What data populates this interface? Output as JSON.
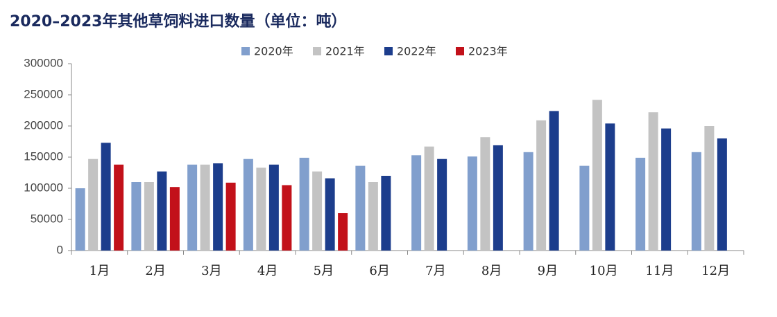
{
  "chart_data": {
    "type": "bar",
    "title": "2020–2023年其他草饲料进口数量（单位：吨）",
    "categories": [
      "1月",
      "2月",
      "3月",
      "4月",
      "5月",
      "6月",
      "7月",
      "8月",
      "9月",
      "10月",
      "11月",
      "12月"
    ],
    "series": [
      {
        "name": "2020年",
        "color": "#819fcd",
        "values": [
          100000,
          110000,
          138000,
          147000,
          149000,
          136000,
          153000,
          151000,
          158000,
          136000,
          149000,
          158000
        ]
      },
      {
        "name": "2021年",
        "color": "#c3c3c3",
        "values": [
          147000,
          110000,
          138000,
          133000,
          127000,
          110000,
          167000,
          182000,
          209000,
          242000,
          222000,
          200000
        ]
      },
      {
        "name": "2022年",
        "color": "#1c3d8c",
        "values": [
          173000,
          127000,
          140000,
          138000,
          116000,
          120000,
          147000,
          169000,
          224000,
          204000,
          196000,
          180000
        ]
      },
      {
        "name": "2023年",
        "color": "#c2111a",
        "values": [
          138000,
          102000,
          109000,
          105000,
          60000,
          null,
          null,
          null,
          null,
          null,
          null,
          null
        ]
      }
    ],
    "ylim": [
      0,
      300000
    ],
    "yticks": [
      0,
      50000,
      100000,
      150000,
      200000,
      250000,
      300000
    ],
    "grid": false
  }
}
